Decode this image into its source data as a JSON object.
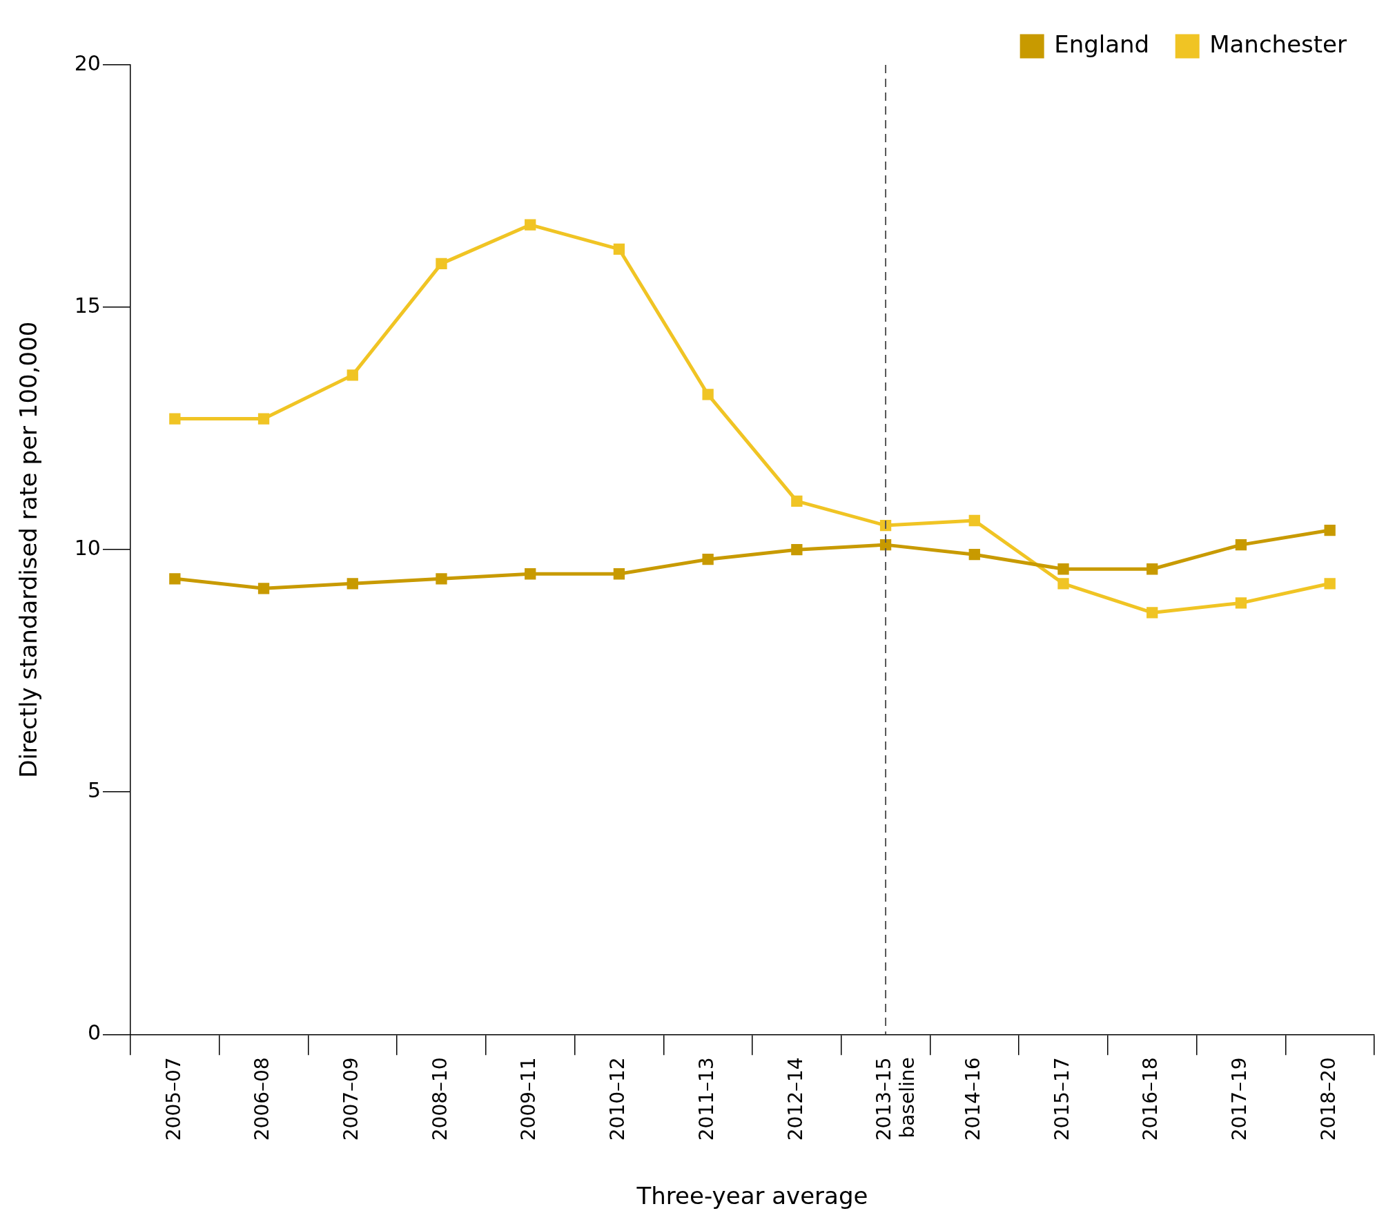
{
  "chart_data": {
    "type": "line",
    "xlabel": "Three-year average",
    "ylabel": "Directly standardised rate per 100,000",
    "categories": [
      "2005–07",
      "2006–08",
      "2007–09",
      "2008–10",
      "2009–11",
      "2010–12",
      "2011–13",
      "2012–14",
      "2013–15\nbaseline",
      "2014–16",
      "2015–17",
      "2016–18",
      "2017–19",
      "2018–20"
    ],
    "series": [
      {
        "name": "England",
        "color": "#c89a00",
        "values": [
          9.4,
          9.2,
          9.3,
          9.4,
          9.5,
          9.5,
          9.8,
          10.0,
          10.1,
          9.9,
          9.6,
          9.6,
          10.1,
          10.4
        ]
      },
      {
        "name": "Manchester",
        "color": "#f0c424",
        "values": [
          12.7,
          12.7,
          13.6,
          15.9,
          16.7,
          16.2,
          13.2,
          11.0,
          10.5,
          10.6,
          9.3,
          8.7,
          8.9,
          9.3
        ]
      }
    ],
    "ylim": [
      0,
      20
    ],
    "yticks": [
      0,
      5,
      10,
      15,
      20
    ],
    "grid": false,
    "legend": "top right",
    "marker": "square",
    "line_style": "solid",
    "ref_lines": [
      {
        "axis": "x",
        "value": "2013–15\nbaseline",
        "color": "#555555",
        "line_style": "dashed"
      }
    ]
  }
}
